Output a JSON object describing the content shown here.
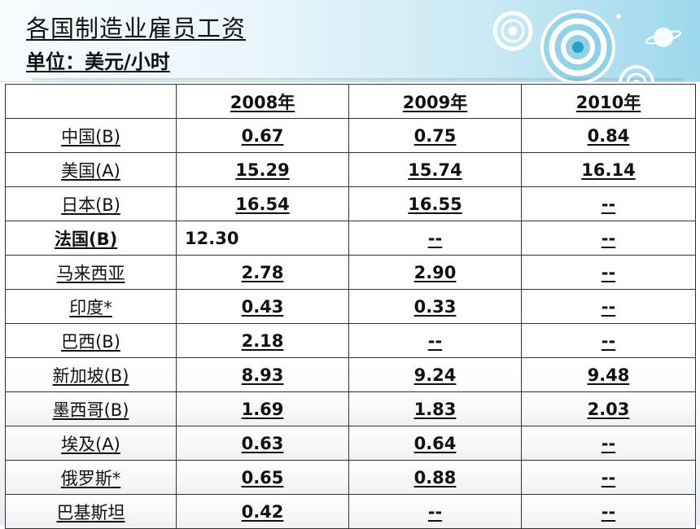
{
  "slide": {
    "title": "各国制造业雇员工资",
    "subtitle": "单位：美元/小时"
  },
  "table": {
    "headers": [
      "",
      "2008年",
      "2009年",
      "2010年"
    ],
    "rows": [
      {
        "country": "中国(B)",
        "y2008": "0.67",
        "y2009": "0.75",
        "y2010": "0.84"
      },
      {
        "country": "美国(A)",
        "y2008": "15.29",
        "y2009": "15.74",
        "y2010": "16.14"
      },
      {
        "country": "日本(B)",
        "y2008": "16.54",
        "y2009": "16.55",
        "y2010": "--"
      },
      {
        "country": "法国(B)",
        "y2008": "12.30",
        "y2009": "--",
        "y2010": "--"
      },
      {
        "country": "马来西亚",
        "y2008": "2.78",
        "y2009": "2.90",
        "y2010": "--"
      },
      {
        "country": "印度*",
        "y2008": "0.43",
        "y2009": "0.33",
        "y2010": "--"
      },
      {
        "country": "巴西(B)",
        "y2008": "2.18",
        "y2009": "--",
        "y2010": "--"
      },
      {
        "country": "新加坡(B)",
        "y2008": "8.93",
        "y2009": "9.24",
        "y2010": "9.48"
      },
      {
        "country": "墨西哥(B)",
        "y2008": "1.69",
        "y2009": "1.83",
        "y2010": "2.03"
      },
      {
        "country": "埃及(A)",
        "y2008": "0.63",
        "y2009": "0.64",
        "y2010": "--"
      },
      {
        "country": "俄罗斯*",
        "y2008": "0.65",
        "y2009": "0.88",
        "y2010": "--"
      },
      {
        "country": "巴基斯坦",
        "y2008": "0.42",
        "y2009": "--",
        "y2010": "--"
      }
    ]
  },
  "colors": {
    "header_band_start": "#f7fbfd",
    "header_band_end": "#9dd8ec",
    "target_ring": "#2a9fc4",
    "text": "#111111"
  }
}
